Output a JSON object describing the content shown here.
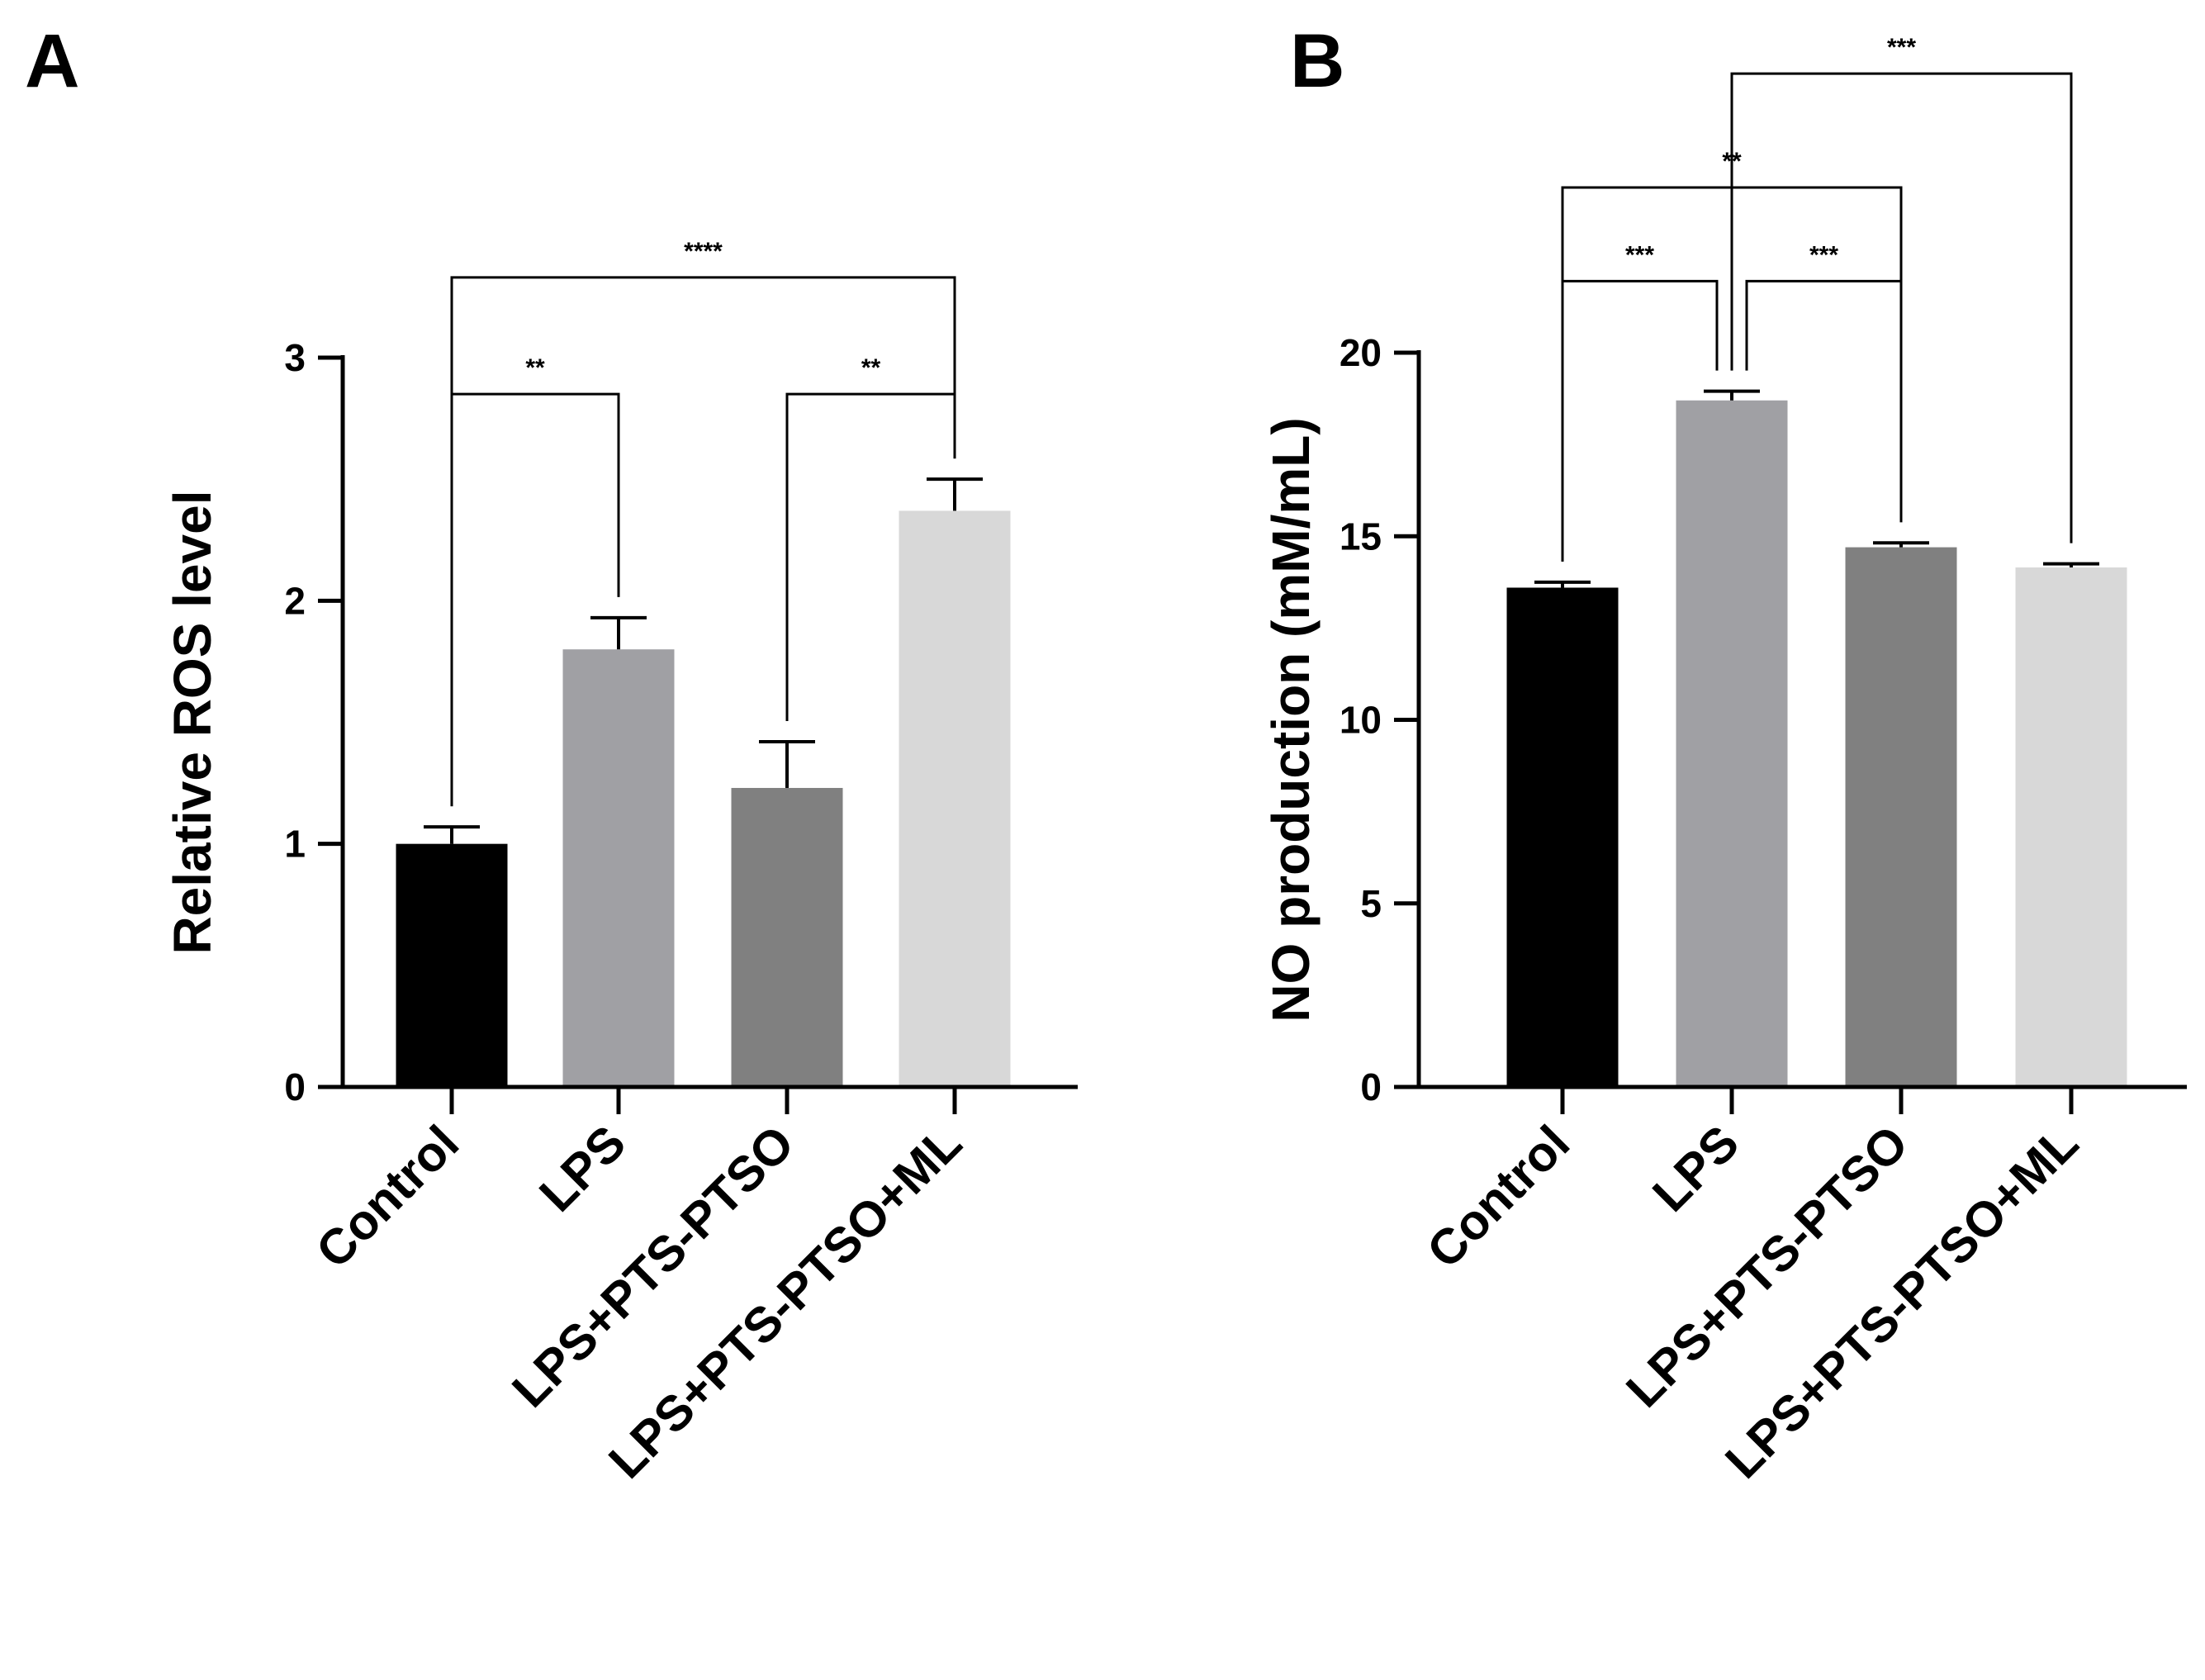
{
  "chart_data": [
    {
      "type": "bar",
      "panel_label": "A",
      "categories": [
        "Control",
        "LPS",
        "LPS+PTS-PTSO",
        "LPS+PTS-PTSO+ML"
      ],
      "values": [
        1.0,
        1.8,
        1.23,
        2.37
      ],
      "errors": [
        0.07,
        0.13,
        0.19,
        0.13
      ],
      "colors": [
        "#000000",
        "#a0a0a4",
        "#808080",
        "#d8d8d8"
      ],
      "ylabel": "Relative ROS level",
      "xlabel": "",
      "ylim": [
        0,
        3
      ],
      "yticks": [
        0,
        1,
        2,
        3
      ],
      "significance": [
        {
          "from": 0,
          "to": 1,
          "label": "**",
          "level": 2.85
        },
        {
          "from": 2,
          "to": 3,
          "label": "**",
          "level": 2.85
        },
        {
          "from": 0,
          "to": 3,
          "label": "****",
          "level": 3.33
        }
      ]
    },
    {
      "type": "bar",
      "panel_label": "B",
      "categories": [
        "Control",
        "LPS",
        "LPS+PTS-PTSO",
        "LPS+PTS-PTSO+ML"
      ],
      "values": [
        13.6,
        18.7,
        14.7,
        14.15
      ],
      "errors": [
        0.15,
        0.25,
        0.12,
        0.1
      ],
      "colors": [
        "#000000",
        "#a0a0a4",
        "#808080",
        "#d8d8d8"
      ],
      "ylabel": "NO production (mM/mL)",
      "xlabel": "",
      "ylim": [
        0,
        20
      ],
      "yticks": [
        0,
        5,
        10,
        15,
        20
      ],
      "significance": [
        {
          "from": 0,
          "to": 1,
          "label": "***",
          "level": 21.95
        },
        {
          "from": 1,
          "to": 2,
          "label": "***",
          "level": 21.95
        },
        {
          "from": 0,
          "to": 2,
          "label": "**",
          "level": 24.5
        },
        {
          "from": 1,
          "to": 3,
          "label": "***",
          "level": 27.6
        }
      ]
    }
  ]
}
